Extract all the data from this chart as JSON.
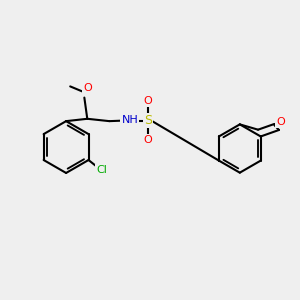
{
  "bg_color": "#efefef",
  "bond_color": "#000000",
  "line_width": 1.5,
  "fig_size": [
    3.0,
    3.0
  ],
  "dpi": 100,
  "colors": {
    "Cl": "#00aa00",
    "O": "#ff0000",
    "N": "#0000cc",
    "S": "#bbbb00",
    "C": "#000000",
    "H": "#888888"
  }
}
